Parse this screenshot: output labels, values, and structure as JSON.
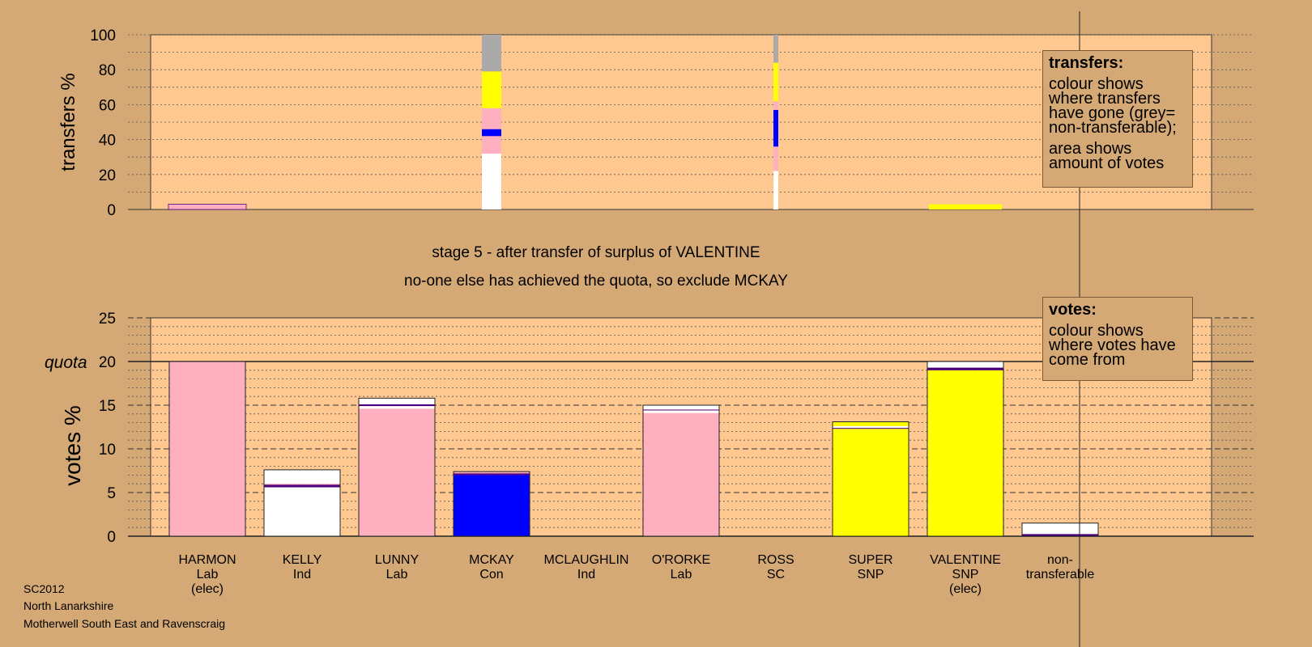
{
  "headline": {
    "stage": "stage 5 - after transfer of surplus of VALENTINE",
    "note": "no-one else has achieved the quota, so exclude MCKAY"
  },
  "footer": [
    "SC2012",
    "North Lanarkshire",
    "Motherwell South East and Ravenscraig"
  ],
  "legend_transfers": {
    "title": "transfers:",
    "body1": "colour shows where transfers have gone (grey= non-transferable);",
    "body2": "area shows amount of votes"
  },
  "legend_votes": {
    "title": "votes:",
    "body": "colour shows where votes have come from"
  },
  "colors": {
    "Lab": "#FFB0C0",
    "Ind": "#FFFFFF",
    "Con": "#0000FF",
    "SNP": "#FFFF00",
    "SC": "#FFFFFF",
    "nontransferable": "#AAAAAA",
    "plot_bg": "#FFC890",
    "page_bg": "#D4A976",
    "purple_edge": "#4B0082"
  },
  "chart_data": [
    {
      "type": "bar",
      "stacked": true,
      "ylabel": "transfers %",
      "ylim": [
        0,
        100
      ],
      "yticks": [
        0,
        20,
        40,
        60,
        80,
        100
      ],
      "grid": true,
      "legend_position": "top-right",
      "categories": [
        "HARMON",
        "KELLY",
        "LUNNY",
        "MCKAY",
        "MCLAUGHLIN",
        "O'RORKE",
        "ROSS",
        "SUPER",
        "VALENTINE",
        "non-transferable"
      ],
      "bars": [
        {
          "candidate": "HARMON",
          "segments": [
            {
              "color": "#FFB0C0",
              "from": 0,
              "to": 3
            }
          ]
        },
        {
          "candidate": "MCKAY",
          "segments": [
            {
              "color": "#FFFFFF",
              "from": 0,
              "to": 32
            },
            {
              "color": "#FFB0C0",
              "from": 32,
              "to": 42
            },
            {
              "color": "#0000FF",
              "from": 42,
              "to": 46
            },
            {
              "color": "#FFB0C0",
              "from": 46,
              "to": 58
            },
            {
              "color": "#FFFF00",
              "from": 58,
              "to": 79
            },
            {
              "color": "#AAAAAA",
              "from": 79,
              "to": 100
            }
          ]
        },
        {
          "candidate": "ROSS",
          "segments": [
            {
              "color": "#FFFFFF",
              "from": 0,
              "to": 22
            },
            {
              "color": "#FFB0C0",
              "from": 22,
              "to": 36
            },
            {
              "color": "#0000FF",
              "from": 36,
              "to": 57
            },
            {
              "color": "#FFB0C0",
              "from": 57,
              "to": 62
            },
            {
              "color": "#FFFF00",
              "from": 62,
              "to": 84
            },
            {
              "color": "#AAAAAA",
              "from": 84,
              "to": 100
            }
          ]
        },
        {
          "candidate": "VALENTINE",
          "segments": [
            {
              "color": "#FFFF00",
              "from": 0,
              "to": 3
            }
          ]
        }
      ]
    },
    {
      "type": "bar",
      "stacked": true,
      "ylabel": "votes %",
      "ylim": [
        0,
        25
      ],
      "yticks": [
        0,
        5,
        10,
        15,
        20,
        25
      ],
      "quota": 20,
      "quota_label": "quota",
      "grid": true,
      "legend_position": "top-right",
      "categories": [
        {
          "name": "HARMON",
          "party": "Lab",
          "status": "(elec)"
        },
        {
          "name": "KELLY",
          "party": "Ind",
          "status": ""
        },
        {
          "name": "LUNNY",
          "party": "Lab",
          "status": ""
        },
        {
          "name": "MCKAY",
          "party": "Con",
          "status": ""
        },
        {
          "name": "MCLAUGHLIN",
          "party": "Ind",
          "status": ""
        },
        {
          "name": "O'RORKE",
          "party": "Lab",
          "status": ""
        },
        {
          "name": "ROSS",
          "party": "SC",
          "status": ""
        },
        {
          "name": "SUPER",
          "party": "SNP",
          "status": ""
        },
        {
          "name": "VALENTINE",
          "party": "SNP",
          "status": "(elec)"
        },
        {
          "name": "non-",
          "party": "transferable",
          "status": ""
        }
      ],
      "values": [
        20.0,
        7.6,
        15.8,
        7.4,
        0,
        15.0,
        0,
        13.1,
        20.0,
        1.5
      ],
      "segments": [
        [
          {
            "color": "#FFB0C0",
            "from": 0,
            "to": 20.0
          }
        ],
        [
          {
            "color": "#FFFFFF",
            "from": 0,
            "to": 5.6
          },
          {
            "color": "#4B0082",
            "from": 5.6,
            "to": 5.9
          },
          {
            "color": "#FFB0C0",
            "from": 5.9,
            "to": 6.0
          },
          {
            "color": "#FFFFFF",
            "from": 6.0,
            "to": 7.6
          }
        ],
        [
          {
            "color": "#FFB0C0",
            "from": 0,
            "to": 14.6
          },
          {
            "color": "#FFFFFF",
            "from": 14.6,
            "to": 14.9
          },
          {
            "color": "#4B0082",
            "from": 14.9,
            "to": 15.1
          },
          {
            "color": "#FFFFFF",
            "from": 15.1,
            "to": 15.8
          }
        ],
        [
          {
            "color": "#0000FF",
            "from": 0,
            "to": 7.0
          },
          {
            "color": "#4B0082",
            "from": 7.0,
            "to": 7.2
          },
          {
            "color": "#FFB0C0",
            "from": 7.2,
            "to": 7.4
          }
        ],
        [],
        [
          {
            "color": "#FFB0C0",
            "from": 0,
            "to": 14.1
          },
          {
            "color": "#FFFFFF",
            "from": 14.1,
            "to": 14.4
          },
          {
            "color": "#4B0082",
            "from": 14.4,
            "to": 14.5
          },
          {
            "color": "#FFFFFF",
            "from": 14.5,
            "to": 15.0
          }
        ],
        [],
        [
          {
            "color": "#FFFF00",
            "from": 0,
            "to": 12.3
          },
          {
            "color": "#4B0082",
            "from": 12.3,
            "to": 12.4
          },
          {
            "color": "#FFFFFF",
            "from": 12.4,
            "to": 12.6
          },
          {
            "color": "#FFFF00",
            "from": 12.6,
            "to": 13.1
          }
        ],
        [
          {
            "color": "#FFFF00",
            "from": 0,
            "to": 19.0
          },
          {
            "color": "#4B0082",
            "from": 19.0,
            "to": 19.3
          },
          {
            "color": "#FFFFFF",
            "from": 19.3,
            "to": 20.0
          }
        ],
        [
          {
            "color": "#4B0082",
            "from": 0,
            "to": 0.25
          },
          {
            "color": "#FFFFFF",
            "from": 0.25,
            "to": 1.5
          }
        ]
      ]
    }
  ]
}
